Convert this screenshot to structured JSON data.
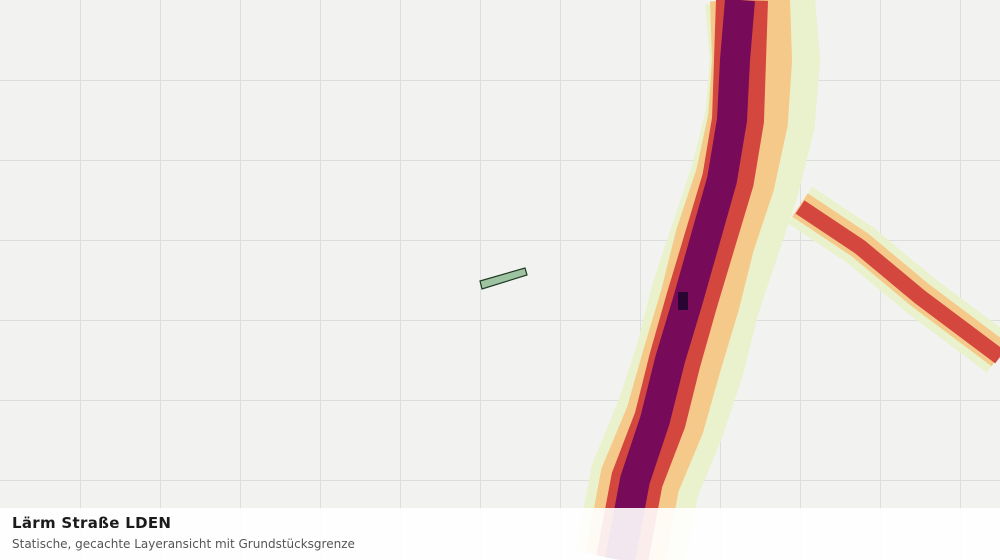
{
  "map": {
    "title": "Lärm Straße LDEN",
    "subtitle": "Statische, gecachte Layeransicht mit Grundstücksgrenze"
  }
}
